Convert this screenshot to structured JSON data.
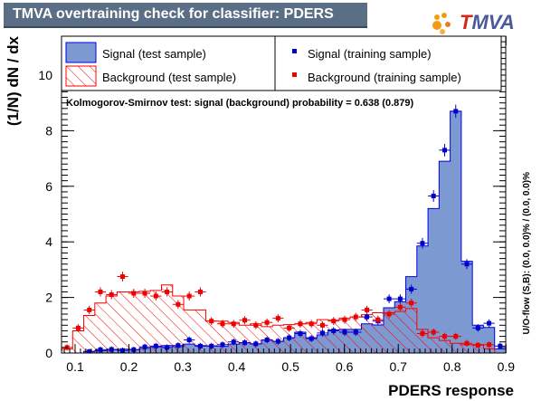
{
  "title": "TMVA overtraining check for classifier: PDERS",
  "logo": {
    "letter_t": "T",
    "rest": "MVA",
    "t_color": "#d2281e",
    "rest_color": "#4a5a9a"
  },
  "colors": {
    "signal_fill": "#7d99d1",
    "signal_line": "#0000ee",
    "background_hatch": "#ff0000",
    "signal_marker": "#0000cc",
    "background_marker": "#ee0000"
  },
  "chart_data": {
    "type": "histogram",
    "xlabel": "PDERS response",
    "ylabel": "(1/N) dN  /  dx",
    "xlim": [
      0.0748,
      0.8995
    ],
    "ylim": [
      0,
      11.4
    ],
    "xticks": [
      0.1,
      0.2,
      0.3,
      0.4,
      0.5,
      0.6,
      0.7,
      0.8,
      0.9
    ],
    "xtick_labels": [
      "0.1",
      "0.2",
      "0.3",
      "0.4",
      "0.5",
      "0.6",
      "0.7",
      "0.8",
      "0.9"
    ],
    "yticks": [
      0,
      2,
      4,
      6,
      8,
      10
    ],
    "ytick_labels": [
      "0",
      "2",
      "4",
      "6",
      "8",
      "10"
    ],
    "bin_edges_range": [
      0.0748,
      0.8995
    ],
    "n_bins": 40,
    "annotation": "Kolmogorov-Smirnov test: signal (background) probability = 0.638 (0.879)",
    "side_label": "U/O-flow (S,B): (0.0, 0.0)% / (0.0, 0.0)%",
    "legend": [
      {
        "label": "Signal (test sample)",
        "style": "filled-box"
      },
      {
        "label": "Signal (training sample)",
        "style": "marker"
      },
      {
        "label": "Background (test sample)",
        "style": "hatched-box"
      },
      {
        "label": "Background (training sample)",
        "style": "marker"
      }
    ],
    "series": [
      {
        "name": "Signal (test sample)",
        "kind": "filled-hist",
        "values": [
          0.0,
          0.0,
          0.06,
          0.08,
          0.12,
          0.14,
          0.12,
          0.17,
          0.22,
          0.27,
          0.23,
          0.32,
          0.27,
          0.26,
          0.24,
          0.32,
          0.37,
          0.33,
          0.47,
          0.42,
          0.55,
          0.75,
          0.55,
          0.65,
          0.83,
          0.85,
          0.85,
          1.05,
          1.01,
          1.63,
          1.85,
          2.75,
          3.85,
          5.2,
          6.9,
          8.7,
          3.3,
          1.0,
          0.92,
          0.15
        ]
      },
      {
        "name": "Signal (training sample)",
        "kind": "points",
        "values": [
          0.0,
          0.0,
          0.05,
          0.12,
          0.13,
          0.09,
          0.12,
          0.22,
          0.25,
          0.2,
          0.27,
          0.47,
          0.25,
          0.25,
          0.3,
          0.4,
          0.37,
          0.33,
          0.47,
          0.42,
          0.55,
          0.7,
          0.52,
          0.72,
          0.8,
          0.75,
          0.75,
          1.3,
          1.15,
          1.95,
          1.95,
          2.3,
          3.95,
          5.65,
          7.3,
          8.7,
          3.2,
          0.9,
          1.07,
          0.25
        ]
      },
      {
        "name": "Background (test sample)",
        "kind": "hatched-hist",
        "values": [
          0.15,
          0.8,
          1.35,
          1.8,
          2.05,
          2.2,
          2.2,
          2.22,
          2.25,
          2.45,
          2.05,
          1.55,
          1.55,
          1.15,
          1.15,
          1.1,
          1.0,
          1.05,
          0.95,
          1.0,
          1.02,
          1.05,
          1.1,
          1.2,
          1.18,
          1.25,
          1.3,
          1.38,
          1.45,
          1.45,
          1.5,
          1.6,
          0.85,
          0.55,
          0.45,
          0.35,
          0.3,
          0.3,
          0.15,
          0.0
        ]
      },
      {
        "name": "Background (training sample)",
        "kind": "points",
        "values": [
          0.2,
          0.9,
          1.55,
          2.2,
          2.1,
          2.75,
          2.15,
          2.15,
          2.05,
          2.2,
          1.75,
          2.05,
          2.2,
          1.15,
          1.05,
          1.05,
          1.18,
          1.0,
          1.1,
          1.25,
          0.9,
          1.05,
          1.05,
          1.0,
          1.15,
          1.2,
          1.3,
          1.55,
          1.2,
          1.4,
          1.65,
          1.8,
          0.7,
          0.75,
          0.6,
          0.6,
          0.35,
          0.28,
          0.3,
          0.0
        ]
      }
    ]
  }
}
